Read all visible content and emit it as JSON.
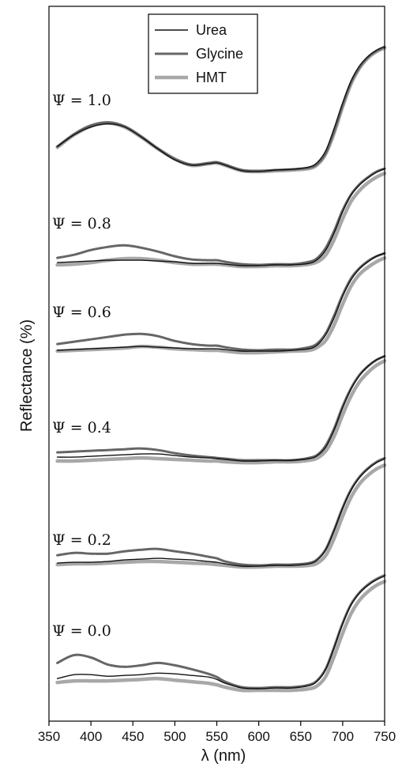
{
  "chart_data": {
    "type": "line",
    "xlabel": "λ (nm)",
    "ylabel": "Reflectance (%)",
    "xlim": [
      350,
      750
    ],
    "x_ticks": [
      "350",
      "400",
      "450",
      "500",
      "550",
      "600",
      "650",
      "700",
      "750"
    ],
    "legend": {
      "placement": "top-center",
      "entries": [
        "Urea",
        "Glycine",
        "HMT"
      ]
    },
    "colors": {
      "Urea": "#111111",
      "Glycine": "#666666",
      "HMT": "#a8a8a8"
    },
    "x": [
      360,
      380,
      400,
      420,
      440,
      460,
      480,
      500,
      520,
      540,
      550,
      560,
      580,
      600,
      620,
      640,
      660,
      670,
      680,
      690,
      700,
      710,
      720,
      730,
      740,
      750
    ],
    "groups": [
      {
        "label": "Ψ = 1.0",
        "series": [
          {
            "name": "Urea",
            "values": [
              3.4,
              4.9,
              5.9,
              6.3,
              5.9,
              4.6,
              3.1,
              1.7,
              1.0,
              1.2,
              1.3,
              1.0,
              0.3,
              0.2,
              0.4,
              0.5,
              0.8,
              1.4,
              2.9,
              5.8,
              9.0,
              11.8,
              13.7,
              14.9,
              15.7,
              16.2
            ]
          },
          {
            "name": "Glycine",
            "values": [
              3.4,
              5.0,
              6.1,
              6.5,
              6.0,
              4.7,
              3.1,
              1.8,
              1.1,
              1.3,
              1.4,
              1.1,
              0.4,
              0.3,
              0.4,
              0.5,
              0.7,
              1.2,
              2.6,
              5.4,
              8.7,
              11.6,
              13.5,
              14.8,
              15.6,
              16.1
            ]
          },
          {
            "name": "HMT",
            "values": [
              3.3,
              4.9,
              6.0,
              6.4,
              5.9,
              4.6,
              3.1,
              1.8,
              1.0,
              1.2,
              1.3,
              1.0,
              0.3,
              0.2,
              0.3,
              0.4,
              0.6,
              1.1,
              2.5,
              5.2,
              8.5,
              11.4,
              13.4,
              14.7,
              15.5,
              16.0
            ]
          }
        ]
      },
      {
        "label": "Ψ = 0.8",
        "series": [
          {
            "name": "Urea",
            "values": [
              0.7,
              0.8,
              0.9,
              1.0,
              1.0,
              1.0,
              0.9,
              0.8,
              0.6,
              0.6,
              0.6,
              0.5,
              0.3,
              0.3,
              0.4,
              0.4,
              0.6,
              1.1,
              2.3,
              4.5,
              7.2,
              9.3,
              10.6,
              11.5,
              12.2,
              12.7
            ]
          },
          {
            "name": "Glycine",
            "values": [
              1.3,
              1.7,
              2.3,
              2.7,
              2.9,
              2.6,
              2.1,
              1.5,
              1.1,
              1.0,
              1.0,
              0.8,
              0.5,
              0.4,
              0.5,
              0.5,
              0.8,
              1.3,
              2.6,
              4.8,
              7.4,
              9.4,
              10.7,
              11.6,
              12.3,
              12.7
            ]
          },
          {
            "name": "HMT",
            "values": [
              0.4,
              0.5,
              0.7,
              1.0,
              1.2,
              1.2,
              1.0,
              0.7,
              0.5,
              0.5,
              0.5,
              0.4,
              0.2,
              0.2,
              0.3,
              0.3,
              0.5,
              0.8,
              1.7,
              3.7,
              6.3,
              8.5,
              9.9,
              10.9,
              11.6,
              12.1
            ]
          }
        ]
      },
      {
        "label": "Ψ = 0.6",
        "series": [
          {
            "name": "Urea",
            "values": [
              0.4,
              0.5,
              0.6,
              0.7,
              0.8,
              0.9,
              0.8,
              0.7,
              0.6,
              0.6,
              0.6,
              0.5,
              0.3,
              0.3,
              0.3,
              0.4,
              0.6,
              1.1,
              2.4,
              4.6,
              7.3,
              9.4,
              10.8,
              11.7,
              12.4,
              12.8
            ]
          },
          {
            "name": "Glycine",
            "values": [
              1.2,
              1.5,
              1.8,
              2.1,
              2.4,
              2.5,
              2.2,
              1.6,
              1.2,
              1.0,
              1.0,
              0.8,
              0.5,
              0.4,
              0.5,
              0.5,
              0.8,
              1.3,
              2.6,
              4.9,
              7.5,
              9.6,
              10.9,
              11.8,
              12.4,
              12.8
            ]
          },
          {
            "name": "HMT",
            "values": [
              0.3,
              0.4,
              0.5,
              0.6,
              0.7,
              0.9,
              0.8,
              0.6,
              0.5,
              0.4,
              0.4,
              0.3,
              0.1,
              0.1,
              0.2,
              0.3,
              0.4,
              0.8,
              1.7,
              3.7,
              6.3,
              8.6,
              10.1,
              11.0,
              11.7,
              12.2
            ]
          }
        ]
      },
      {
        "label": "Ψ = 0.4",
        "series": [
          {
            "name": "Urea",
            "values": [
              0.7,
              0.7,
              0.8,
              0.9,
              1.0,
              1.1,
              1.1,
              0.9,
              0.7,
              0.6,
              0.5,
              0.4,
              0.2,
              0.2,
              0.3,
              0.3,
              0.5,
              0.9,
              2.0,
              4.2,
              7.0,
              9.4,
              11.1,
              12.3,
              13.1,
              13.6
            ]
          },
          {
            "name": "Glycine",
            "values": [
              1.3,
              1.4,
              1.5,
              1.6,
              1.7,
              1.8,
              1.6,
              1.2,
              0.9,
              0.7,
              0.6,
              0.5,
              0.3,
              0.3,
              0.3,
              0.3,
              0.6,
              1.0,
              2.2,
              4.4,
              7.2,
              9.5,
              11.2,
              12.3,
              13.1,
              13.6
            ]
          },
          {
            "name": "HMT",
            "values": [
              0.2,
              0.2,
              0.3,
              0.4,
              0.5,
              0.6,
              0.5,
              0.4,
              0.3,
              0.2,
              0.2,
              0.1,
              0.0,
              0.0,
              0.1,
              0.1,
              0.3,
              0.6,
              1.5,
              3.4,
              6.1,
              8.5,
              10.3,
              11.5,
              12.4,
              13.0
            ]
          }
        ]
      },
      {
        "label": "Ψ = 0.2",
        "series": [
          {
            "name": "Urea",
            "values": [
              0.6,
              0.7,
              0.7,
              0.8,
              1.0,
              1.1,
              1.2,
              1.1,
              1.0,
              0.8,
              0.7,
              0.5,
              0.2,
              0.2,
              0.3,
              0.3,
              0.5,
              1.0,
              2.3,
              4.8,
              7.6,
              9.9,
              11.5,
              12.6,
              13.4,
              13.9
            ]
          },
          {
            "name": "Glycine",
            "values": [
              1.6,
              1.9,
              1.8,
              1.8,
              2.1,
              2.3,
              2.4,
              2.1,
              1.8,
              1.4,
              1.2,
              0.8,
              0.4,
              0.3,
              0.4,
              0.4,
              0.6,
              1.1,
              2.4,
              4.9,
              7.7,
              10.0,
              11.6,
              12.7,
              13.5,
              14.0
            ]
          },
          {
            "name": "HMT",
            "values": [
              0.4,
              0.5,
              0.5,
              0.6,
              0.7,
              0.8,
              0.8,
              0.7,
              0.6,
              0.5,
              0.4,
              0.3,
              0.1,
              0.1,
              0.2,
              0.2,
              0.3,
              0.6,
              1.6,
              3.8,
              6.6,
              9.0,
              10.7,
              11.8,
              12.6,
              13.1
            ]
          }
        ]
      },
      {
        "label": "Ψ = 0.0",
        "series": [
          {
            "name": "Urea",
            "values": [
              1.8,
              2.3,
              2.3,
              2.1,
              2.2,
              2.3,
              2.5,
              2.4,
              2.2,
              2.0,
              1.7,
              1.2,
              0.6,
              0.5,
              0.6,
              0.6,
              0.9,
              1.5,
              3.0,
              5.8,
              8.8,
              11.2,
              12.7,
              13.7,
              14.4,
              14.9
            ]
          },
          {
            "name": "Glycine",
            "values": [
              3.8,
              4.8,
              4.5,
              3.6,
              3.3,
              3.5,
              3.8,
              3.5,
              3.0,
              2.4,
              2.0,
              1.4,
              0.7,
              0.6,
              0.7,
              0.7,
              1.0,
              1.6,
              3.1,
              5.9,
              8.9,
              11.3,
              12.8,
              13.8,
              14.5,
              15.0
            ]
          },
          {
            "name": "HMT",
            "values": [
              1.3,
              1.5,
              1.5,
              1.5,
              1.6,
              1.7,
              1.8,
              1.6,
              1.4,
              1.2,
              1.0,
              0.7,
              0.3,
              0.3,
              0.3,
              0.3,
              0.5,
              0.9,
              2.1,
              4.7,
              7.6,
              10.1,
              11.8,
              12.9,
              13.7,
              14.2
            ]
          }
        ]
      }
    ]
  }
}
